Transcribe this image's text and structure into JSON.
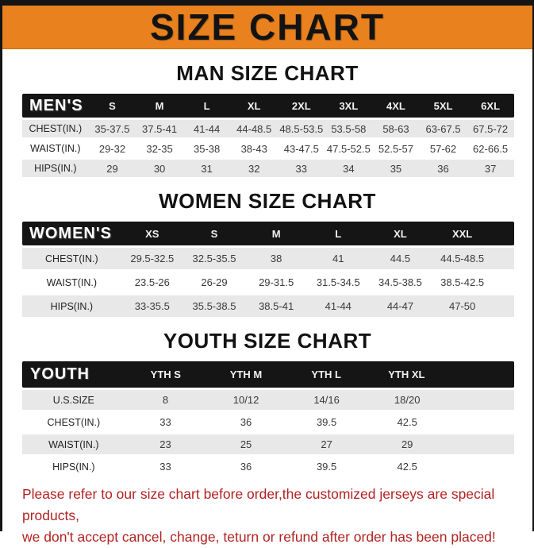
{
  "title": "SIZE CHART",
  "colors": {
    "banner_orange": "#E8811E",
    "header_bar_black": "#151515",
    "row_alt_gray": "#E8E8E8",
    "note_red": "#B22222"
  },
  "sections": [
    {
      "heading": "MAN SIZE CHART",
      "table": {
        "header_label": "MEN'S",
        "columns": [
          "S",
          "M",
          "L",
          "XL",
          "2XL",
          "3XL",
          "4XL",
          "5XL",
          "6XL"
        ],
        "rows": [
          {
            "label": "CHEST(IN.)",
            "values": [
              "35-37.5",
              "37.5-41",
              "41-44",
              "44-48.5",
              "48.5-53.5",
              "53.5-58",
              "58-63",
              "63-67.5",
              "67.5-72"
            ]
          },
          {
            "label": "WAIST(IN.)",
            "values": [
              "29-32",
              "32-35",
              "35-38",
              "38-43",
              "43-47.5",
              "47.5-52.5",
              "52.5-57",
              "57-62",
              "62-66.5"
            ]
          },
          {
            "label": "HIPS(IN.)",
            "values": [
              "29",
              "30",
              "31",
              "32",
              "33",
              "34",
              "35",
              "36",
              "37"
            ]
          }
        ]
      }
    },
    {
      "heading": "WOMEN SIZE CHART",
      "table": {
        "header_label": "WOMEN'S",
        "columns": [
          "XS",
          "S",
          "M",
          "L",
          "XL",
          "XXL"
        ],
        "rows": [
          {
            "label": "CHEST(IN.)",
            "values": [
              "29.5-32.5",
              "32.5-35.5",
              "38",
              "41",
              "44.5",
              "44.5-48.5"
            ]
          },
          {
            "label": "WAIST(IN.)",
            "values": [
              "23.5-26",
              "26-29",
              "29-31.5",
              "31.5-34.5",
              "34.5-38.5",
              "38.5-42.5"
            ]
          },
          {
            "label": "HIPS(IN.)",
            "values": [
              "33-35.5",
              "35.5-38.5",
              "38.5-41",
              "41-44",
              "44-47",
              "47-50"
            ]
          }
        ]
      }
    },
    {
      "heading": "YOUTH SIZE CHART",
      "table": {
        "header_label": "YOUTH",
        "columns": [
          "YTH S",
          "YTH M",
          "YTH L",
          "YTH XL"
        ],
        "rows": [
          {
            "label": "U.S.SIZE",
            "values": [
              "8",
              "10/12",
              "14/16",
              "18/20"
            ]
          },
          {
            "label": "CHEST(IN.)",
            "values": [
              "33",
              "36",
              "39.5",
              "42.5"
            ]
          },
          {
            "label": "WAIST(IN.)",
            "values": [
              "23",
              "25",
              "27",
              "29"
            ]
          },
          {
            "label": "HIPS(IN.)",
            "values": [
              "33",
              "36",
              "39.5",
              "42.5"
            ]
          }
        ]
      }
    }
  ],
  "note": {
    "line1": "Please refer to our size chart before order,the customized jerseys are special products,",
    "line2": "we don't accept cancel, change, teturn or refund after order has been placed!"
  }
}
